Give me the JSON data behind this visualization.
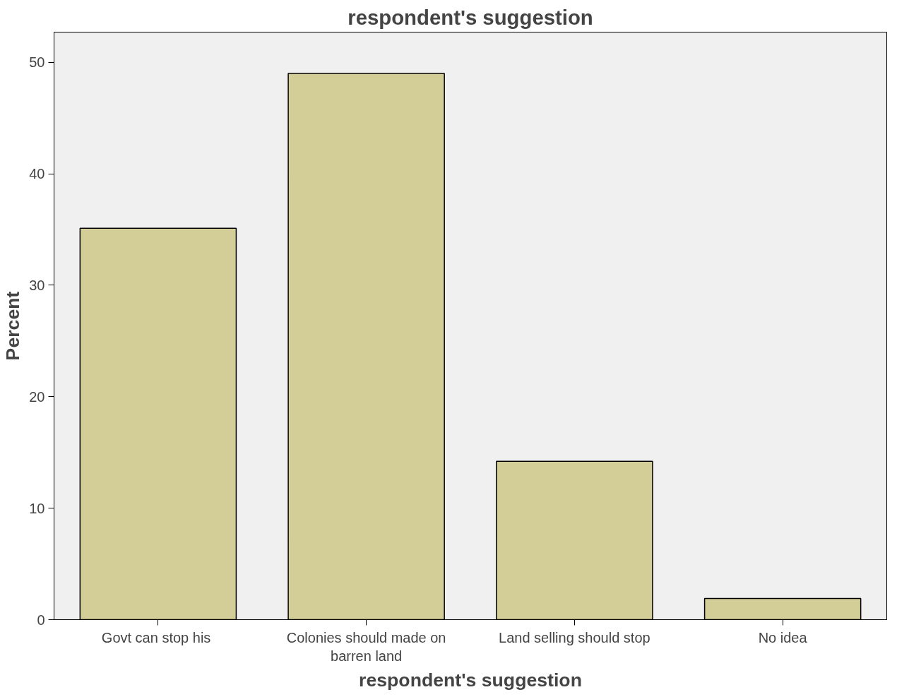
{
  "chart_data": {
    "type": "bar",
    "title": "respondent's suggestion",
    "xlabel": "respondent's suggestion",
    "ylabel": "Percent",
    "categories": [
      "Govt  can stop his",
      "Colonies should made on\nbarren land",
      "Land selling should stop",
      "No idea"
    ],
    "values": [
      35.1,
      49.0,
      14.2,
      1.9
    ],
    "color": "#d3ce97",
    "ylim": [
      0,
      52.7
    ],
    "yticks": [
      0,
      10,
      20,
      30,
      40,
      50
    ],
    "grid": false
  }
}
